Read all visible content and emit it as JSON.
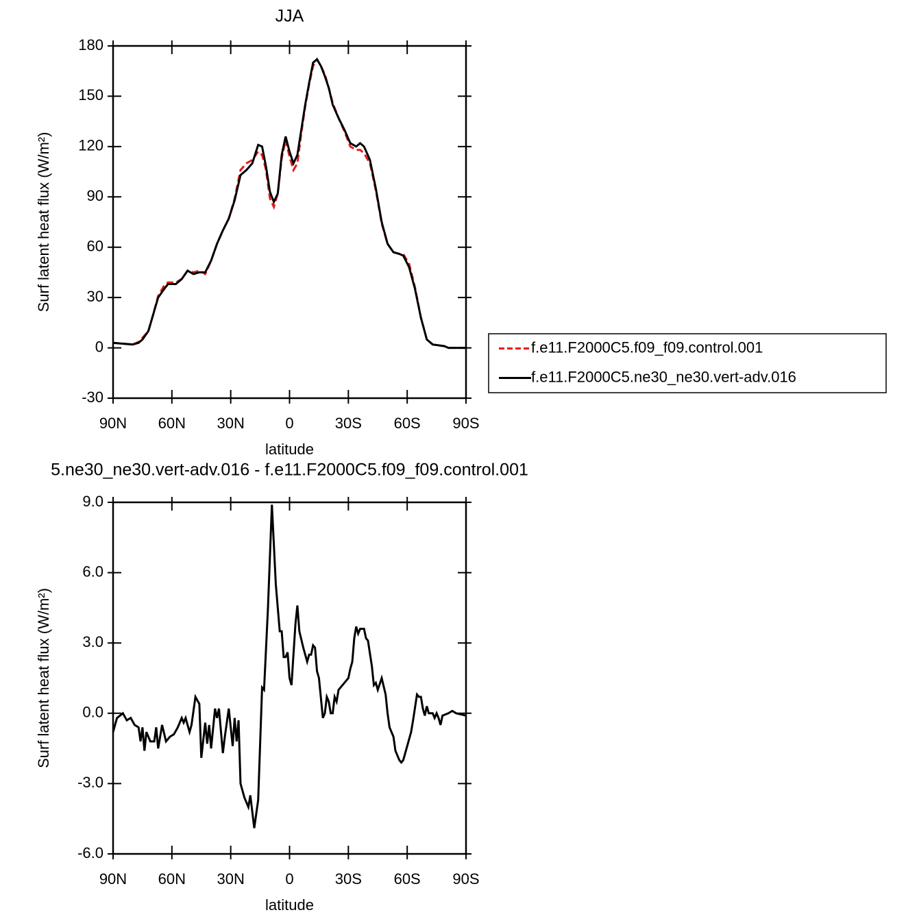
{
  "chart_data": [
    {
      "type": "line",
      "title": "JJA",
      "xlabel": "latitude",
      "ylabel": "Surf latent heat flux (W/m²)",
      "x": [
        90,
        85,
        80,
        77,
        75,
        72,
        70,
        67,
        64,
        62,
        58,
        55,
        52,
        49,
        46,
        43,
        40,
        37,
        34,
        31,
        28,
        25,
        22,
        19,
        16,
        14,
        12,
        10,
        8,
        6,
        4,
        2,
        0,
        -2,
        -4,
        -6,
        -8,
        -10,
        -12,
        -14,
        -16,
        -18,
        -20,
        -22,
        -25,
        -28,
        -31,
        -34,
        -36,
        -38,
        -41,
        -44,
        -47,
        -50,
        -53,
        -56,
        -58,
        -61,
        -64,
        -67,
        -70,
        -73,
        -76,
        -79,
        -81,
        -85,
        -90
      ],
      "series": [
        {
          "name": "f.e11.F2000C5.f09_f09.control.001",
          "color": "#e41a1c",
          "dash": true,
          "values": [
            3,
            2.5,
            2,
            3.5,
            6,
            10,
            18,
            31,
            37,
            39,
            39,
            41,
            46,
            45,
            46,
            44,
            52,
            62,
            70,
            77,
            89,
            106,
            110,
            112,
            117,
            115,
            106,
            89,
            84,
            92,
            113,
            124,
            114,
            106,
            110,
            128,
            144,
            157,
            168,
            172,
            168,
            163,
            155,
            146,
            137,
            129,
            120,
            118,
            118,
            116,
            110,
            94,
            74,
            62,
            57,
            56,
            56,
            50,
            36,
            18,
            5,
            2,
            1.5,
            1,
            0,
            0,
            0
          ]
        },
        {
          "name": "f.e11.F2000C5.ne30_ne30.vert-adv.016",
          "color": "#000000",
          "dash": false,
          "values": [
            3,
            2.5,
            2,
            3,
            5,
            10,
            18,
            30,
            35,
            38,
            38,
            41,
            46,
            44,
            45,
            45,
            52,
            62,
            70,
            77,
            88,
            103,
            106,
            110,
            121,
            120,
            108,
            93,
            87,
            92,
            115,
            126,
            117,
            110,
            115,
            130,
            145,
            158,
            170,
            172,
            168,
            162,
            155,
            145,
            137,
            130,
            122,
            120,
            122,
            120,
            112,
            95,
            75,
            62,
            57,
            56,
            55,
            48,
            35,
            18,
            5,
            2,
            1.5,
            1,
            0,
            0,
            0
          ]
        }
      ],
      "xlim": [
        90,
        -90
      ],
      "xticks": [
        {
          "value": 90,
          "label": "90N"
        },
        {
          "value": 60,
          "label": "60N"
        },
        {
          "value": 30,
          "label": "30N"
        },
        0,
        {
          "value": -30,
          "label": "30S"
        },
        {
          "value": -60,
          "label": "60S"
        },
        {
          "value": -90,
          "label": "90S"
        }
      ],
      "ylim": [
        -30,
        180
      ],
      "yticks": [
        180,
        150,
        120,
        90,
        60,
        30,
        0,
        -30
      ],
      "legend": "right"
    },
    {
      "type": "line",
      "title": "5.ne30_ne30.vert-adv.016 - f.e11.F2000C5.f09_f09.control.001",
      "xlabel": "latitude",
      "ylabel": "Surf latent heat flux (W/m²)",
      "x": [
        90,
        88,
        85,
        83,
        81,
        79,
        77,
        76,
        75,
        74,
        73,
        71,
        69,
        68,
        67,
        65,
        63,
        61,
        59,
        57,
        55,
        54,
        53,
        51,
        50,
        48,
        46,
        45,
        43,
        42,
        41,
        40,
        38,
        37,
        36,
        34,
        33,
        31,
        29,
        28,
        27,
        26,
        25,
        23,
        21,
        20,
        18,
        16,
        14,
        13,
        11,
        9,
        7,
        5,
        4,
        3,
        2,
        1,
        0,
        -1,
        -3,
        -4,
        -5,
        -7,
        -8,
        -9,
        -10,
        -11,
        -12,
        -13,
        -14,
        -15,
        -17,
        -18,
        -19,
        -20,
        -21,
        -22,
        -23,
        -24,
        -25,
        -26,
        -28,
        -30,
        -31,
        -32,
        -33,
        -34,
        -35,
        -36,
        -38,
        -39,
        -40,
        -42,
        -43,
        -44,
        -45,
        -47,
        -49,
        -50,
        -51,
        -53,
        -54,
        -56,
        -57,
        -58,
        -60,
        -62,
        -63,
        -65,
        -66,
        -67,
        -68,
        -69,
        -70,
        -71,
        -73,
        -74,
        -75,
        -76,
        -77,
        -78,
        -81,
        -83,
        -85,
        -90
      ],
      "series": [
        {
          "color": "#000000",
          "values": [
            -0.8,
            -0.2,
            0,
            -0.3,
            -0.2,
            -0.5,
            -0.6,
            -1.2,
            -0.6,
            -1.6,
            -0.8,
            -1.2,
            -1.2,
            -0.6,
            -1.5,
            -0.5,
            -1.2,
            -1,
            -0.9,
            -0.6,
            -0.2,
            -0.4,
            -0.2,
            -0.8,
            -0.5,
            0.7,
            0.4,
            -1.9,
            -0.4,
            -1.3,
            -0.5,
            -1.5,
            0.2,
            -0.2,
            0.2,
            -1.7,
            -1,
            0.2,
            -1.4,
            -0.2,
            -1.2,
            -0.3,
            -3,
            -3.6,
            -4,
            -3.5,
            -4.9,
            -3.7,
            1.1,
            1,
            4.5,
            8.9,
            5.5,
            3.5,
            3.5,
            2.4,
            2.4,
            2.6,
            1.5,
            1.2,
            3.8,
            4.6,
            3.5,
            2.8,
            2.5,
            2.2,
            2.5,
            2.5,
            2.9,
            2.8,
            1.8,
            1.5,
            -0.2,
            0,
            0.7,
            0.5,
            0,
            0,
            0.7,
            0.5,
            1,
            1.1,
            1.3,
            1.5,
            1.9,
            2.2,
            3.2,
            3.7,
            3.4,
            3.6,
            3.6,
            3.2,
            3.1,
            2,
            1.2,
            1.3,
            1,
            1.5,
            0.8,
            0,
            -0.6,
            -1,
            -1.6,
            -2,
            -2.1,
            -2,
            -1.4,
            -0.8,
            -0.3,
            0.8,
            0.7,
            0.7,
            0.2,
            -0.1,
            0.3,
            0,
            0,
            -0.2,
            0,
            -0.2,
            -0.5,
            -0.1,
            0,
            0.1,
            0,
            -0.1
          ]
        }
      ],
      "xlim": [
        90,
        -90
      ],
      "xticks": [
        {
          "value": 90,
          "label": "90N"
        },
        {
          "value": 60,
          "label": "60N"
        },
        {
          "value": 30,
          "label": "30N"
        },
        0,
        {
          "value": -30,
          "label": "30S"
        },
        {
          "value": -60,
          "label": "60S"
        },
        {
          "value": -90,
          "label": "90S"
        }
      ],
      "ylim": [
        -6,
        9
      ],
      "yticks": [
        {
          "value": 9,
          "label": "9.0"
        },
        {
          "value": 6,
          "label": "6.0"
        },
        {
          "value": 3,
          "label": "3.0"
        },
        {
          "value": 0,
          "label": "0.0"
        },
        {
          "value": -3,
          "label": "-3.0"
        },
        {
          "value": -6,
          "label": "-6.0"
        }
      ]
    }
  ]
}
